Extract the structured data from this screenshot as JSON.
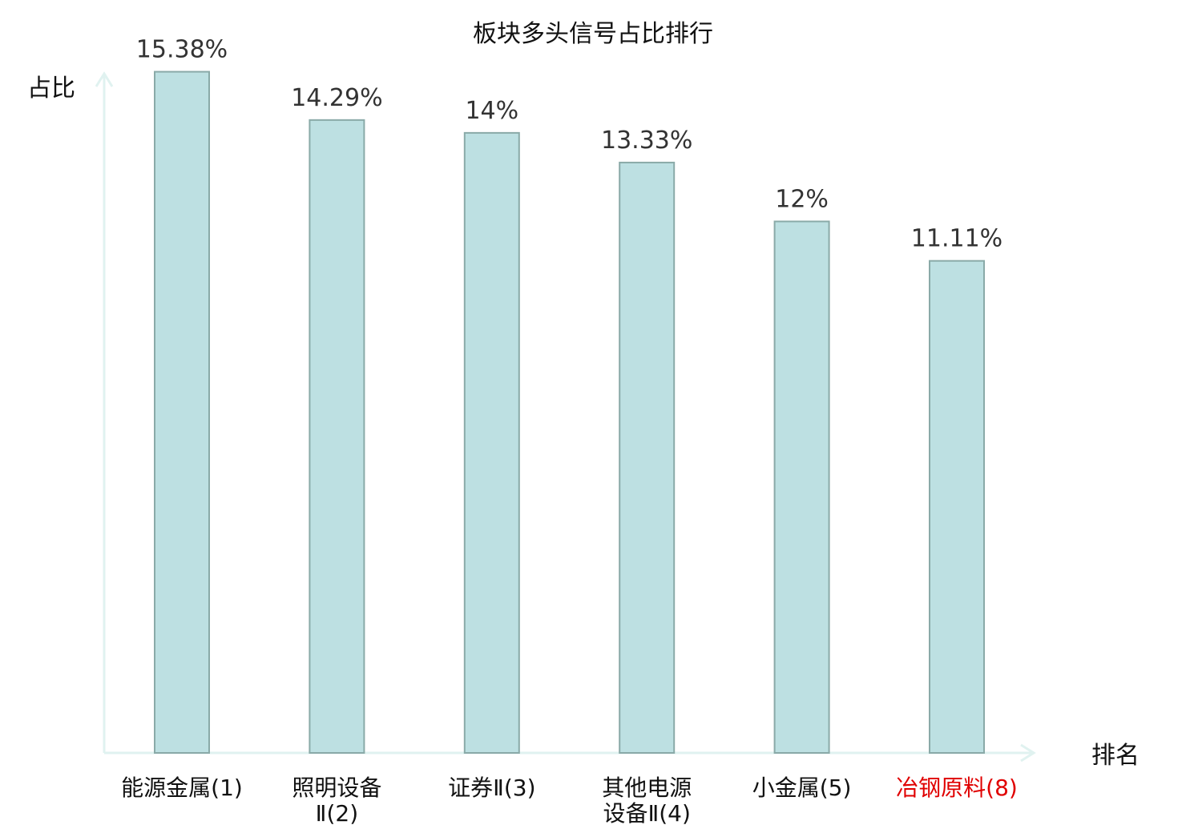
{
  "chart_data": {
    "type": "bar",
    "title": "板块多头信号占比排行",
    "xlabel": "排名",
    "ylabel": "占比",
    "ylim": [
      0,
      17
    ],
    "grid": false,
    "legend": "none",
    "categories": [
      [
        "能源金属(1)"
      ],
      [
        "照明设备",
        "Ⅱ(2)"
      ],
      [
        "证券Ⅱ(3)"
      ],
      [
        "其他电源",
        "设备Ⅱ(4)"
      ],
      [
        "小金属(5)"
      ],
      [
        "冶钢原料(8)"
      ]
    ],
    "values": [
      15.38,
      14.29,
      14,
      13.33,
      12,
      11.11
    ],
    "value_labels": [
      "15.38%",
      "14.29%",
      "14%",
      "13.33%",
      "12%",
      "11.11%"
    ],
    "highlight_index": 5
  },
  "colors": {
    "bar_fill": "#bde0e2",
    "bar_stroke": "#8aaaa8",
    "axis": "#e0f2f0",
    "label_text": "#333333",
    "category_text": "#111111",
    "highlight_text": "#e00000"
  }
}
